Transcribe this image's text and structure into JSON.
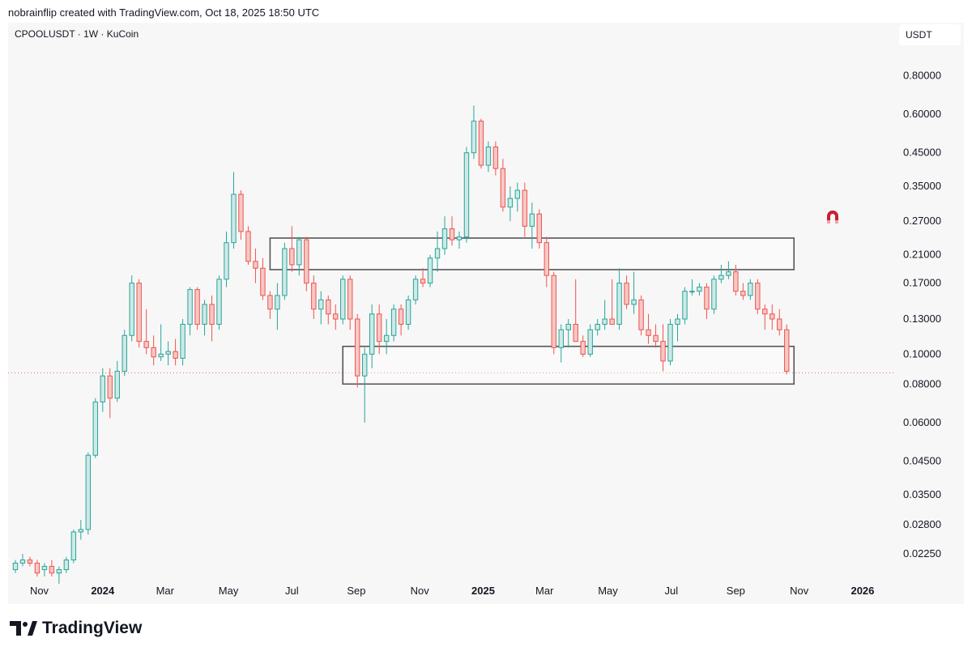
{
  "caption": "nobrainflip created with TradingView.com, Oct 18, 2025 18:50 UTC",
  "symbol_line": "CPOOLUSDT · 1W · KuCoin",
  "currency": "USDT",
  "brand": {
    "name": "TradingView",
    "icon": "tradingview-logo-icon"
  },
  "icons": {
    "magnet": "magnet-icon"
  },
  "colors": {
    "up": "#26a69a",
    "down": "#ef5350",
    "up_fill": "#cfe9e6",
    "down_fill": "#f6c8c4",
    "zone_stroke": "#555555"
  },
  "chart_data": {
    "type": "candlestick",
    "scale": "log",
    "ylim": [
      0.019,
      0.98
    ],
    "xlim": [
      "2023-10-02",
      "2026-02-02"
    ],
    "y_ticks": [
      "0.80000",
      "0.60000",
      "0.45000",
      "0.35000",
      "0.27000",
      "0.21000",
      "0.17000",
      "0.13000",
      "0.10000",
      "0.08000",
      "0.06000",
      "0.04500",
      "0.03500",
      "0.02800",
      "0.02250"
    ],
    "x_ticks": [
      {
        "label": "Nov",
        "date": "2023-11-01",
        "bold": false
      },
      {
        "label": "2024",
        "date": "2024-01-01",
        "bold": true
      },
      {
        "label": "Mar",
        "date": "2024-03-01",
        "bold": false
      },
      {
        "label": "May",
        "date": "2024-05-01",
        "bold": false
      },
      {
        "label": "Jul",
        "date": "2024-07-01",
        "bold": false
      },
      {
        "label": "Sep",
        "date": "2024-09-01",
        "bold": false
      },
      {
        "label": "Nov",
        "date": "2024-11-01",
        "bold": false
      },
      {
        "label": "2025",
        "date": "2025-01-01",
        "bold": true
      },
      {
        "label": "Mar",
        "date": "2025-03-01",
        "bold": false
      },
      {
        "label": "May",
        "date": "2025-05-01",
        "bold": false
      },
      {
        "label": "Jul",
        "date": "2025-07-01",
        "bold": false
      },
      {
        "label": "Sep",
        "date": "2025-09-01",
        "bold": false
      },
      {
        "label": "Nov",
        "date": "2025-11-01",
        "bold": false
      },
      {
        "label": "2026",
        "date": "2026-01-01",
        "bold": true
      }
    ],
    "first_candle_date": "2023-10-09",
    "current_price": 0.087,
    "zones": [
      {
        "from": "2024-06-10",
        "to": "2025-10-27",
        "low": 0.188,
        "high": 0.238
      },
      {
        "from": "2024-08-19",
        "to": "2025-10-27",
        "low": 0.08,
        "high": 0.106
      }
    ],
    "candles": [
      [
        0.02,
        0.0215,
        0.0195,
        0.021
      ],
      [
        0.021,
        0.0225,
        0.0205,
        0.0215
      ],
      [
        0.0215,
        0.022,
        0.0205,
        0.021
      ],
      [
        0.021,
        0.0215,
        0.019,
        0.0195
      ],
      [
        0.02,
        0.021,
        0.019,
        0.0205
      ],
      [
        0.0205,
        0.0215,
        0.019,
        0.0195
      ],
      [
        0.0195,
        0.0205,
        0.018,
        0.02
      ],
      [
        0.02,
        0.022,
        0.0195,
        0.0215
      ],
      [
        0.0215,
        0.027,
        0.021,
        0.0265
      ],
      [
        0.0265,
        0.029,
        0.025,
        0.027
      ],
      [
        0.027,
        0.048,
        0.026,
        0.047
      ],
      [
        0.047,
        0.072,
        0.046,
        0.07
      ],
      [
        0.07,
        0.09,
        0.065,
        0.085
      ],
      [
        0.085,
        0.09,
        0.062,
        0.072
      ],
      [
        0.072,
        0.095,
        0.07,
        0.088
      ],
      [
        0.088,
        0.12,
        0.085,
        0.115
      ],
      [
        0.115,
        0.18,
        0.11,
        0.17
      ],
      [
        0.17,
        0.175,
        0.105,
        0.11
      ],
      [
        0.11,
        0.14,
        0.1,
        0.105
      ],
      [
        0.105,
        0.115,
        0.092,
        0.098
      ],
      [
        0.098,
        0.125,
        0.095,
        0.1
      ],
      [
        0.1,
        0.11,
        0.092,
        0.102
      ],
      [
        0.102,
        0.112,
        0.092,
        0.097
      ],
      [
        0.097,
        0.13,
        0.092,
        0.125
      ],
      [
        0.125,
        0.165,
        0.115,
        0.162
      ],
      [
        0.162,
        0.165,
        0.12,
        0.125
      ],
      [
        0.125,
        0.15,
        0.115,
        0.145
      ],
      [
        0.145,
        0.155,
        0.11,
        0.125
      ],
      [
        0.125,
        0.18,
        0.12,
        0.175
      ],
      [
        0.175,
        0.25,
        0.165,
        0.23
      ],
      [
        0.23,
        0.39,
        0.22,
        0.33
      ],
      [
        0.33,
        0.34,
        0.235,
        0.25
      ],
      [
        0.25,
        0.26,
        0.195,
        0.2
      ],
      [
        0.2,
        0.22,
        0.17,
        0.19
      ],
      [
        0.19,
        0.205,
        0.15,
        0.155
      ],
      [
        0.155,
        0.16,
        0.13,
        0.14
      ],
      [
        0.14,
        0.17,
        0.12,
        0.155
      ],
      [
        0.155,
        0.23,
        0.15,
        0.22
      ],
      [
        0.22,
        0.26,
        0.185,
        0.195
      ],
      [
        0.195,
        0.24,
        0.18,
        0.235
      ],
      [
        0.235,
        0.24,
        0.16,
        0.17
      ],
      [
        0.17,
        0.18,
        0.13,
        0.14
      ],
      [
        0.14,
        0.16,
        0.125,
        0.15
      ],
      [
        0.15,
        0.155,
        0.125,
        0.135
      ],
      [
        0.135,
        0.145,
        0.12,
        0.13
      ],
      [
        0.13,
        0.18,
        0.125,
        0.175
      ],
      [
        0.175,
        0.18,
        0.12,
        0.13
      ],
      [
        0.13,
        0.135,
        0.078,
        0.085
      ],
      [
        0.085,
        0.105,
        0.06,
        0.1
      ],
      [
        0.1,
        0.145,
        0.09,
        0.135
      ],
      [
        0.135,
        0.145,
        0.1,
        0.11
      ],
      [
        0.11,
        0.13,
        0.1,
        0.115
      ],
      [
        0.115,
        0.145,
        0.11,
        0.14
      ],
      [
        0.14,
        0.145,
        0.115,
        0.125
      ],
      [
        0.125,
        0.155,
        0.12,
        0.15
      ],
      [
        0.15,
        0.18,
        0.145,
        0.175
      ],
      [
        0.175,
        0.19,
        0.165,
        0.17
      ],
      [
        0.17,
        0.21,
        0.165,
        0.205
      ],
      [
        0.205,
        0.25,
        0.185,
        0.22
      ],
      [
        0.22,
        0.28,
        0.21,
        0.255
      ],
      [
        0.255,
        0.28,
        0.225,
        0.235
      ],
      [
        0.235,
        0.25,
        0.22,
        0.24
      ],
      [
        0.24,
        0.47,
        0.23,
        0.45
      ],
      [
        0.45,
        0.64,
        0.43,
        0.57
      ],
      [
        0.57,
        0.58,
        0.4,
        0.41
      ],
      [
        0.41,
        0.49,
        0.39,
        0.47
      ],
      [
        0.47,
        0.49,
        0.38,
        0.4
      ],
      [
        0.4,
        0.43,
        0.29,
        0.3
      ],
      [
        0.3,
        0.35,
        0.27,
        0.32
      ],
      [
        0.32,
        0.36,
        0.29,
        0.34
      ],
      [
        0.34,
        0.36,
        0.24,
        0.26
      ],
      [
        0.26,
        0.31,
        0.22,
        0.285
      ],
      [
        0.285,
        0.295,
        0.22,
        0.23
      ],
      [
        0.23,
        0.24,
        0.165,
        0.18
      ],
      [
        0.18,
        0.185,
        0.1,
        0.105
      ],
      [
        0.105,
        0.125,
        0.094,
        0.12
      ],
      [
        0.12,
        0.13,
        0.105,
        0.125
      ],
      [
        0.125,
        0.175,
        0.11,
        0.11
      ],
      [
        0.11,
        0.115,
        0.098,
        0.1
      ],
      [
        0.1,
        0.125,
        0.098,
        0.12
      ],
      [
        0.12,
        0.13,
        0.115,
        0.125
      ],
      [
        0.125,
        0.15,
        0.12,
        0.13
      ],
      [
        0.13,
        0.175,
        0.125,
        0.125
      ],
      [
        0.125,
        0.19,
        0.12,
        0.17
      ],
      [
        0.17,
        0.18,
        0.14,
        0.145
      ],
      [
        0.145,
        0.185,
        0.135,
        0.15
      ],
      [
        0.15,
        0.155,
        0.115,
        0.12
      ],
      [
        0.12,
        0.135,
        0.108,
        0.115
      ],
      [
        0.115,
        0.125,
        0.105,
        0.11
      ],
      [
        0.11,
        0.125,
        0.088,
        0.095
      ],
      [
        0.095,
        0.13,
        0.092,
        0.125
      ],
      [
        0.125,
        0.135,
        0.11,
        0.13
      ],
      [
        0.13,
        0.165,
        0.125,
        0.16
      ],
      [
        0.16,
        0.175,
        0.155,
        0.16
      ],
      [
        0.16,
        0.17,
        0.155,
        0.165
      ],
      [
        0.165,
        0.17,
        0.13,
        0.14
      ],
      [
        0.14,
        0.18,
        0.135,
        0.175
      ],
      [
        0.175,
        0.195,
        0.17,
        0.18
      ],
      [
        0.18,
        0.2,
        0.175,
        0.185
      ],
      [
        0.185,
        0.195,
        0.155,
        0.16
      ],
      [
        0.16,
        0.17,
        0.15,
        0.155
      ],
      [
        0.155,
        0.175,
        0.15,
        0.17
      ],
      [
        0.17,
        0.175,
        0.135,
        0.14
      ],
      [
        0.14,
        0.145,
        0.12,
        0.135
      ],
      [
        0.135,
        0.145,
        0.12,
        0.13
      ],
      [
        0.13,
        0.14,
        0.115,
        0.12
      ],
      [
        0.12,
        0.125,
        0.086,
        0.088
      ]
    ]
  }
}
